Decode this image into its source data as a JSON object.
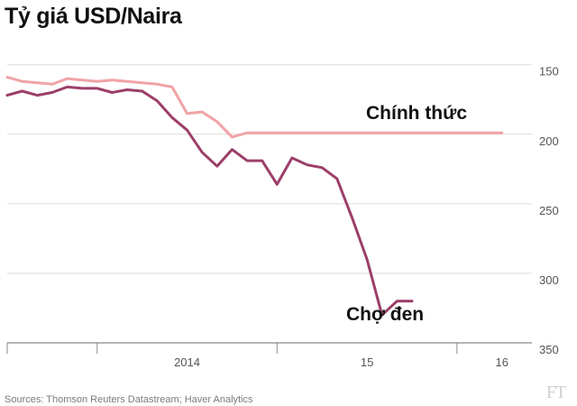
{
  "title": "Tỷ giá USD/Naira",
  "source": "Sources: Thomson Reuters Datastream; Haver Analytics",
  "logo": "FT",
  "chart_data": {
    "type": "line",
    "title": "Tỷ giá USD/Naira",
    "xlabel": "",
    "ylabel": "",
    "y_inverted": true,
    "ylim": [
      350,
      145
    ],
    "y_ticks": [
      150,
      200,
      250,
      300,
      350
    ],
    "x_ticks": [
      {
        "label": "2014",
        "x": "2014-07"
      },
      {
        "label": "15",
        "x": "2015-07"
      },
      {
        "label": "16",
        "x": "2016-04"
      }
    ],
    "x_period_boundaries": [
      "2014-01",
      "2015-01",
      "2016-01"
    ],
    "xlim": [
      "2013-07",
      "2016-06"
    ],
    "grid": true,
    "legend": "none",
    "series": [
      {
        "name": "Chính thức",
        "color": "#f0a3a6",
        "points": [
          [
            "2013-07",
            159
          ],
          [
            "2013-08",
            162
          ],
          [
            "2013-09",
            163
          ],
          [
            "2013-10",
            164
          ],
          [
            "2013-11",
            160
          ],
          [
            "2013-12",
            161
          ],
          [
            "2014-01",
            162
          ],
          [
            "2014-02",
            161
          ],
          [
            "2014-03",
            162
          ],
          [
            "2014-04",
            163
          ],
          [
            "2014-05",
            164
          ],
          [
            "2014-06",
            166
          ],
          [
            "2014-07",
            185
          ],
          [
            "2014-08",
            184
          ],
          [
            "2014-09",
            191
          ],
          [
            "2014-10",
            202
          ],
          [
            "2014-11",
            199
          ],
          [
            "2014-12",
            199
          ],
          [
            "2015-01",
            199
          ],
          [
            "2015-02",
            199
          ],
          [
            "2015-03",
            199
          ],
          [
            "2015-04",
            199
          ],
          [
            "2015-05",
            199
          ],
          [
            "2015-06",
            199
          ],
          [
            "2015-07",
            199
          ],
          [
            "2015-08",
            199
          ],
          [
            "2015-09",
            199
          ],
          [
            "2015-10",
            199
          ],
          [
            "2015-11",
            199
          ],
          [
            "2015-12",
            199
          ],
          [
            "2016-01",
            199
          ],
          [
            "2016-02",
            199
          ],
          [
            "2016-03",
            199
          ],
          [
            "2016-04",
            199
          ]
        ]
      },
      {
        "name": "Chợ đen",
        "color": "#9c3e6a",
        "points": [
          [
            "2013-07",
            172
          ],
          [
            "2013-08",
            169
          ],
          [
            "2013-09",
            172
          ],
          [
            "2013-10",
            170
          ],
          [
            "2013-11",
            166
          ],
          [
            "2013-12",
            167
          ],
          [
            "2014-01",
            167
          ],
          [
            "2014-02",
            170
          ],
          [
            "2014-03",
            168
          ],
          [
            "2014-04",
            169
          ],
          [
            "2014-05",
            176
          ],
          [
            "2014-06",
            188
          ],
          [
            "2014-07",
            197
          ],
          [
            "2014-08",
            213
          ],
          [
            "2014-09",
            223
          ],
          [
            "2014-10",
            211
          ],
          [
            "2014-11",
            219
          ],
          [
            "2014-12",
            219
          ],
          [
            "2015-01",
            236
          ],
          [
            "2015-02",
            217
          ],
          [
            "2015-03",
            222
          ],
          [
            "2015-04",
            224
          ],
          [
            "2015-05",
            232
          ],
          [
            "2015-06",
            260
          ],
          [
            "2015-07",
            290
          ],
          [
            "2015-08",
            330
          ],
          [
            "2015-09",
            320
          ],
          [
            "2015-10",
            320
          ]
        ]
      }
    ],
    "annotations": [
      {
        "text": "Chính thức",
        "series": "Chính thức"
      },
      {
        "text": "Chợ đen",
        "series": "Chợ đen"
      }
    ]
  }
}
